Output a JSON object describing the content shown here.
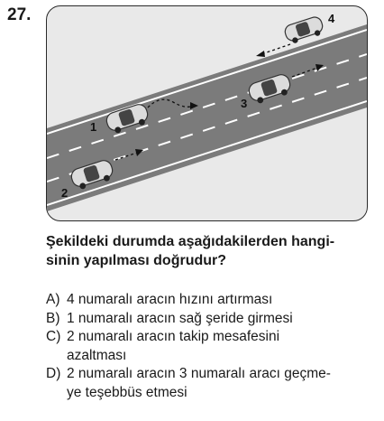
{
  "question": {
    "number": "27.",
    "stem_line1": "Şekildeki durumda aşağıdakilerden hangi-",
    "stem_line2": "sinin yapılması doğrudur?",
    "options": [
      {
        "label": "A)",
        "lines": [
          "4 numaralı aracın hızını artırması"
        ]
      },
      {
        "label": "B)",
        "lines": [
          "1 numaralı aracın sağ şeride girmesi"
        ]
      },
      {
        "label": "C)",
        "lines": [
          "2 numaralı aracın takip mesafesini",
          "azaltması"
        ]
      },
      {
        "label": "D)",
        "lines": [
          "2 numaralı aracın 3 numaralı aracı geçme-",
          "ye teşebbüs etmesi"
        ]
      }
    ]
  },
  "figure": {
    "car_labels": [
      "1",
      "2",
      "3",
      "4"
    ],
    "colors": {
      "road": "#7b7b7b",
      "shoulder": "#e9e9e9",
      "car": "#d9d9d9",
      "lane_marking": "#ffffff"
    }
  }
}
